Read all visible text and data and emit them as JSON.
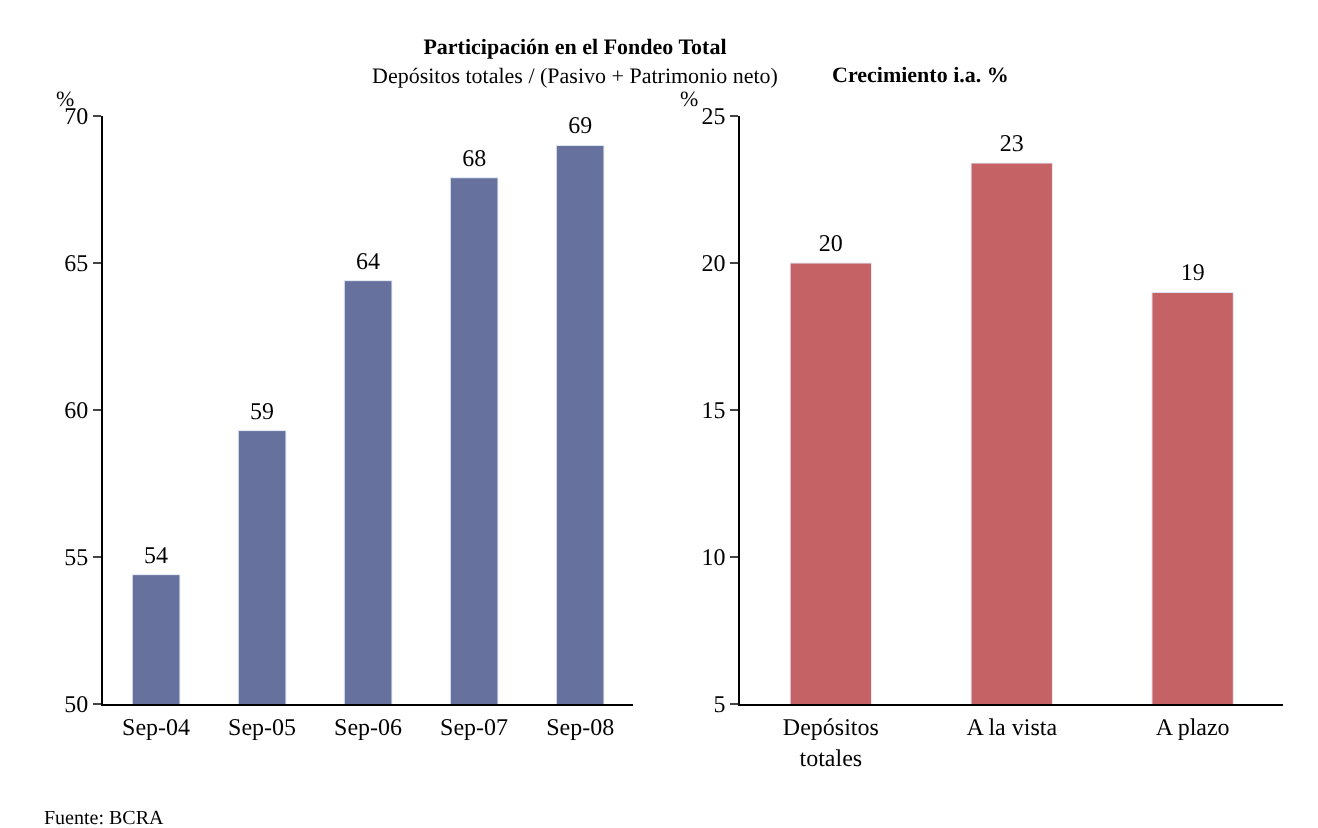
{
  "chart_data": [
    {
      "type": "bar",
      "title": "Participación en el Fondeo Total",
      "subtitle": "Depósitos totales / (Pasivo + Patrimonio neto)",
      "ylabel": "%",
      "categories": [
        "Sep-04",
        "Sep-05",
        "Sep-06",
        "Sep-07",
        "Sep-08"
      ],
      "values": [
        54.4,
        59.3,
        64.4,
        67.9,
        69.0
      ],
      "value_labels": [
        "54",
        "59",
        "64",
        "68",
        "69"
      ],
      "color": "#67719e",
      "ylim": [
        50,
        70
      ],
      "yticks": [
        50,
        55,
        60,
        65,
        70
      ],
      "annotations": [
        "Fuente: BCRA"
      ]
    },
    {
      "type": "bar",
      "title": "Crecimiento i.a. %",
      "ylabel": "%",
      "categories": [
        "Depósitos totales",
        "A la vista",
        "A plazo"
      ],
      "values": [
        20.0,
        23.4,
        19.0
      ],
      "value_labels": [
        "20",
        "23",
        "19"
      ],
      "color": "#c46266",
      "ylim": [
        5,
        25
      ],
      "yticks": [
        5,
        10,
        15,
        20,
        25
      ]
    }
  ]
}
